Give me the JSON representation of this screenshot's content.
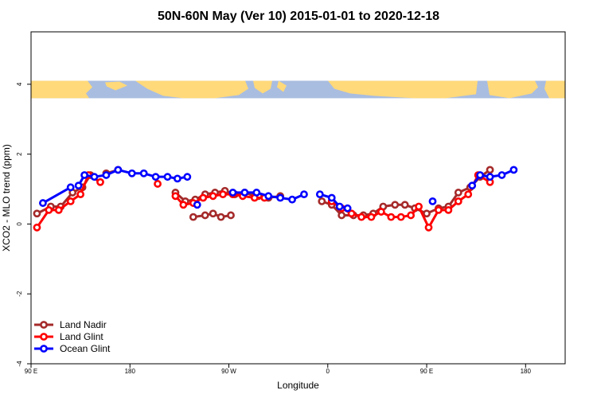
{
  "chart_data": {
    "type": "line",
    "title": "50N-60N May (Ver 10)   2015-01-01 to 2020-12-18",
    "xlabel": "Longitude",
    "ylabel": "XCO2 - MLO trend (ppm)",
    "xlim": [
      -90,
      180
    ],
    "ylim": [
      -4,
      5.5
    ],
    "xticks": [
      {
        "value": -90,
        "label": "90 E"
      },
      {
        "value": -40,
        "label": "180"
      },
      {
        "value": 10,
        "label": "90 W"
      },
      {
        "value": 60,
        "label": "0"
      },
      {
        "value": 110,
        "label": "90 E"
      },
      {
        "value": 160,
        "label": "180"
      }
    ],
    "yticks": [
      -4,
      -2,
      0,
      2,
      4
    ],
    "map_band": {
      "y_bottom": 3.6,
      "y_top": 4.1,
      "ocean_color": "#a9bde0",
      "land_color": "#ffd97a"
    },
    "series": [
      {
        "name": "Land Nadir",
        "color": "#a52a2a",
        "segments": [
          {
            "x": [
              -87,
              -80,
              -75,
              -69,
              -64,
              -60
            ],
            "y": [
              0.3,
              0.5,
              0.5,
              0.9,
              1.05,
              1.4
            ]
          },
          {
            "x": [
              -52,
              -46
            ],
            "y": [
              1.45,
              1.55
            ]
          },
          {
            "x": [
              -8,
              -2,
              2,
              6,
              11
            ],
            "y": [
              0.2,
              0.25,
              0.3,
              0.2,
              0.25
            ]
          },
          {
            "x": [
              -17,
              -12,
              -7,
              -2,
              3,
              8,
              13,
              18,
              23
            ],
            "y": [
              0.9,
              0.65,
              0.7,
              0.85,
              0.9,
              0.95,
              0.85,
              0.9,
              0.8
            ]
          },
          {
            "x": [
              25,
              30,
              36
            ],
            "y": [
              0.8,
              0.75,
              0.8
            ]
          },
          {
            "x": [
              57,
              62,
              67,
              73,
              78,
              83,
              88,
              94,
              99,
              104,
              110,
              116,
              121,
              126,
              132,
              137,
              142
            ],
            "y": [
              0.65,
              0.55,
              0.25,
              0.25,
              0.25,
              0.3,
              0.5,
              0.55,
              0.55,
              0.45,
              0.3,
              0.45,
              0.5,
              0.9,
              1.05,
              1.35,
              1.55
            ]
          }
        ]
      },
      {
        "name": "Land Glint",
        "color": "#ff0000",
        "segments": [
          {
            "x": [
              -87,
              -81,
              -76,
              -70,
              -65,
              -61,
              -55
            ],
            "y": [
              -0.1,
              0.4,
              0.4,
              0.65,
              0.85,
              1.4,
              1.2
            ]
          },
          {
            "x": [
              -26
            ],
            "y": [
              1.15
            ]
          },
          {
            "x": [
              -17,
              -13,
              -8,
              -3,
              2,
              7,
              12,
              17,
              23,
              28
            ],
            "y": [
              0.8,
              0.55,
              0.6,
              0.75,
              0.8,
              0.85,
              0.85,
              0.8,
              0.75,
              0.75
            ]
          },
          {
            "x": [
              62,
              67,
              72,
              77,
              82,
              87,
              92,
              97,
              102,
              106,
              111,
              116,
              121,
              126,
              131,
              136,
              142
            ],
            "y": [
              0.65,
              0.45,
              0.3,
              0.2,
              0.2,
              0.35,
              0.2,
              0.2,
              0.25,
              0.5,
              -0.1,
              0.4,
              0.4,
              0.65,
              0.85,
              1.4,
              1.2
            ]
          }
        ]
      },
      {
        "name": "Ocean Glint",
        "color": "#0000ff",
        "segments": [
          {
            "x": [
              -84,
              -70
            ],
            "y": [
              0.6,
              1.05
            ]
          },
          {
            "x": [
              -66,
              -63,
              -58,
              -52,
              -46,
              -39,
              -33,
              -27,
              -21,
              -16,
              -11
            ],
            "y": [
              1.1,
              1.4,
              1.35,
              1.4,
              1.55,
              1.45,
              1.45,
              1.35,
              1.35,
              1.3,
              1.35
            ]
          },
          {
            "x": [
              -6
            ],
            "y": [
              0.55
            ]
          },
          {
            "x": [
              12,
              18,
              24,
              30,
              36,
              42,
              48
            ],
            "y": [
              0.9,
              0.9,
              0.9,
              0.8,
              0.75,
              0.7,
              0.85
            ]
          },
          {
            "x": [
              56,
              62,
              66,
              70
            ],
            "y": [
              0.85,
              0.75,
              0.5,
              0.45
            ]
          },
          {
            "x": [
              113
            ],
            "y": [
              0.65
            ]
          },
          {
            "x": [
              133,
              137,
              142,
              148,
              154
            ],
            "y": [
              1.1,
              1.4,
              1.35,
              1.4,
              1.55
            ]
          }
        ]
      }
    ],
    "legend": {
      "position": "bottom-left",
      "entries": [
        {
          "label": "Land Nadir",
          "color": "#a52a2a"
        },
        {
          "label": "Land Glint",
          "color": "#ff0000"
        },
        {
          "label": "Ocean Glint",
          "color": "#0000ff"
        }
      ]
    }
  }
}
